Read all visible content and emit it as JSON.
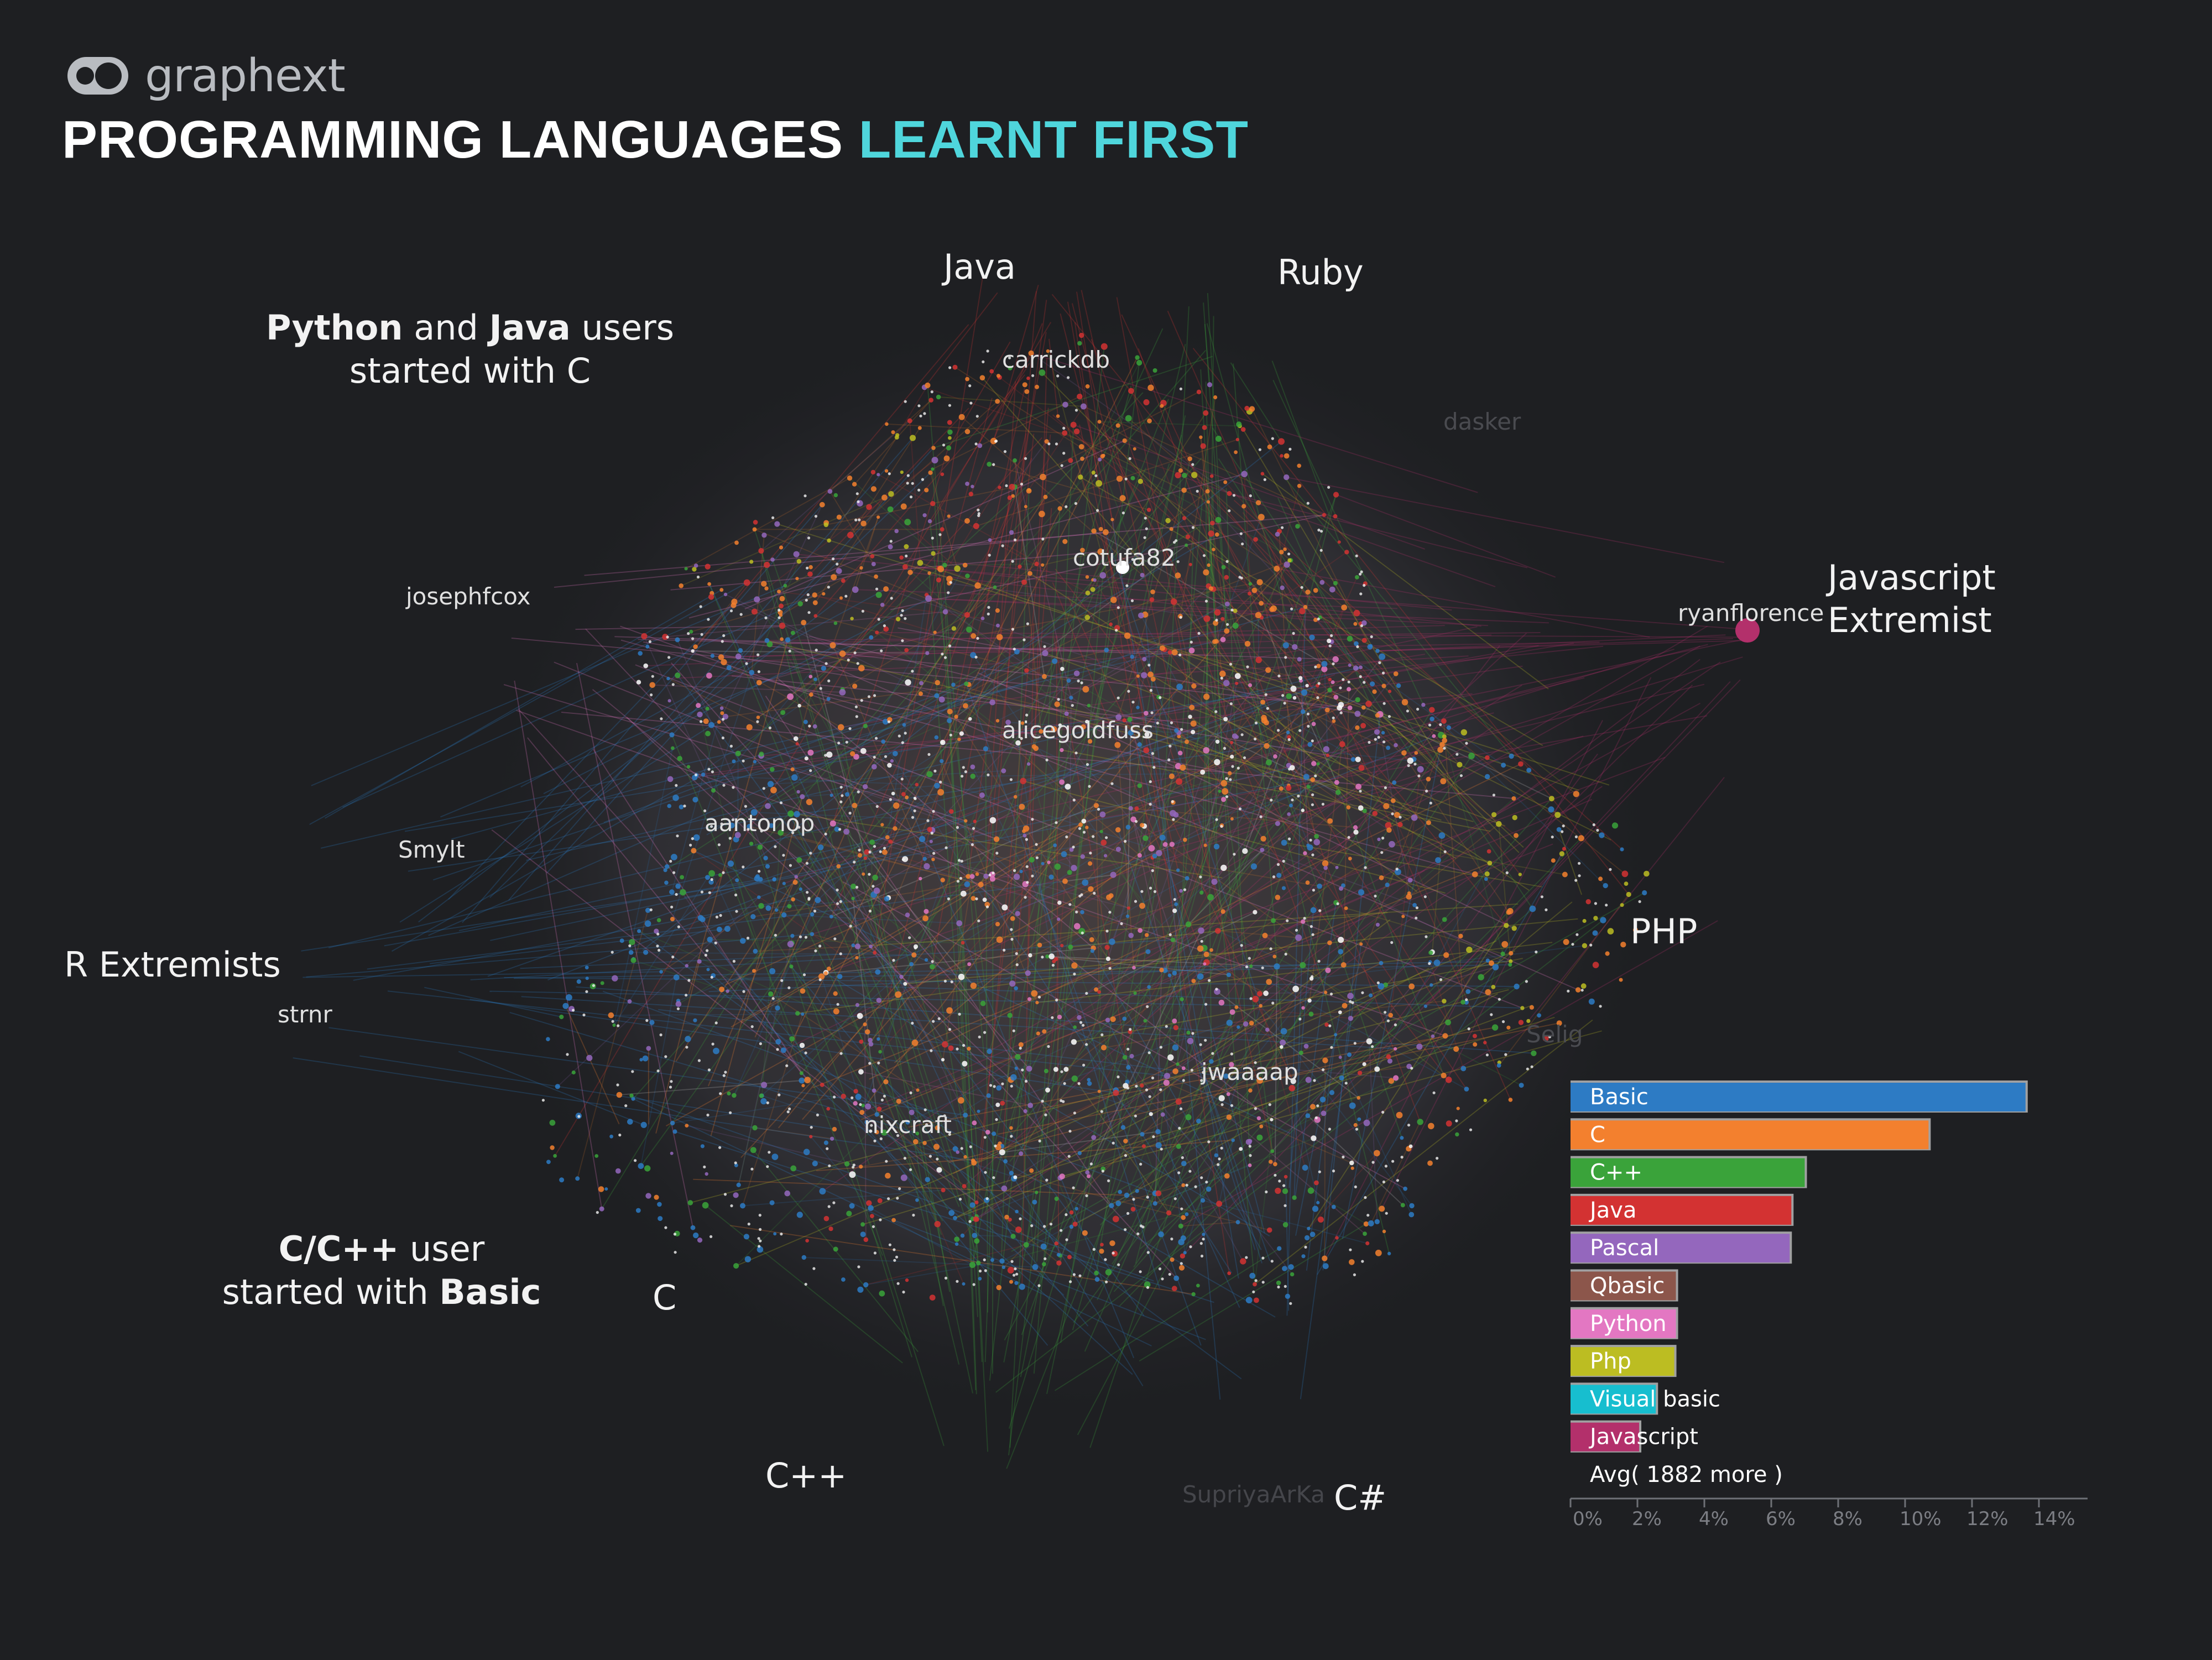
{
  "brand": {
    "name": "graphext"
  },
  "title": {
    "main": "PROGRAMMING LANGUAGES",
    "accent": "LEARNT FIRST"
  },
  "cluster_labels": {
    "java": "Java",
    "ruby": "Ruby",
    "javascript_line1": "Javascript",
    "javascript_line2": "Extremist",
    "php": "PHP",
    "r_extremists": "R Extremists",
    "c": "C",
    "cpp": "C++",
    "csharp": "C#"
  },
  "annotations": {
    "python_java": {
      "b1": "Python",
      "t1": " and ",
      "b2": "Java",
      "t2": " users",
      "line2": "started with C"
    },
    "c_cpp": {
      "b1": "C/C++",
      "t1": " user",
      "line2a": "started with ",
      "b2": "Basic"
    }
  },
  "node_labels": {
    "carrickdb": "carrickdb",
    "cotufa82": "cotufa82",
    "josephfcox": "josephfcox",
    "ryanflorence": "ryanflorence",
    "alicegoldfuss": "alicegoldfuss",
    "aantonop": "aantonop",
    "smylt": "Smylt",
    "strnr": "strnr",
    "jwaaaap": "jwaaaap",
    "nixcraft": "nixcraft",
    "faint_1": "dasker",
    "faint_2": "Selig",
    "faint_3": "SupriyaArKa"
  },
  "colors": {
    "background": "#1e1f22",
    "accent": "#4fd6dc",
    "basic": "#2d7bc4",
    "c": "#f3802e",
    "cpp": "#3aa33a",
    "java": "#d33232",
    "pascal": "#9467bd",
    "qbasic": "#8c564b",
    "python": "#e377c2",
    "php": "#bcbd22",
    "visual_basic": "#17becf",
    "javascript": "#b3306b"
  },
  "chart_data": [
    {
      "type": "network",
      "description_note": "",
      "legend_placement": "bottom-right"
    },
    {
      "type": "bar",
      "orientation": "horizontal",
      "categories": [
        "Basic",
        "C",
        "C++",
        "Java",
        "Pascal",
        "Qbasic",
        "Python",
        "Php",
        "Visual basic",
        "Javascript"
      ],
      "values": [
        13.6,
        10.7,
        7.0,
        6.6,
        6.55,
        3.15,
        3.15,
        3.1,
        2.55,
        2.05
      ],
      "colors": [
        "#2d7bc4",
        "#f3802e",
        "#3aa33a",
        "#d33232",
        "#9467bd",
        "#8c564b",
        "#e377c2",
        "#bcbd22",
        "#17becf",
        "#b3306b"
      ],
      "footer": "Avg( 1882 more )",
      "xticks": [
        "0%",
        "2%",
        "4%",
        "6%",
        "8%",
        "10%",
        "12%",
        "14%"
      ],
      "xlim": [
        0,
        15
      ]
    }
  ]
}
